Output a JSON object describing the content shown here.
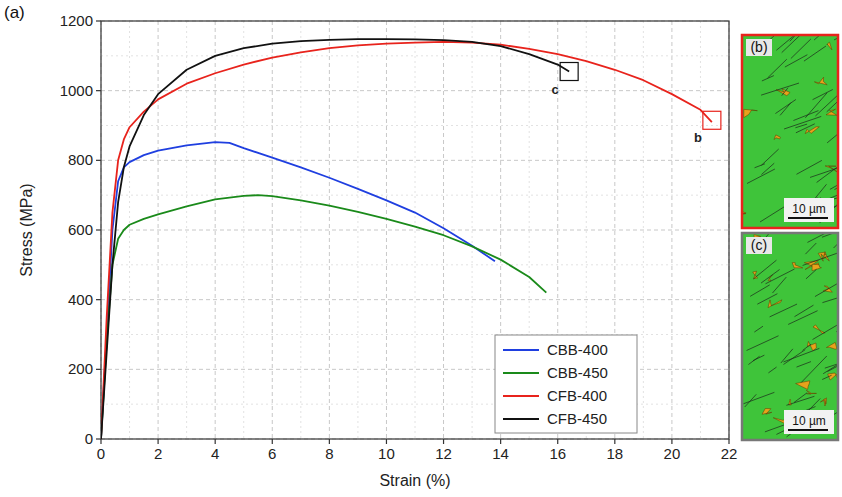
{
  "chart_data": {
    "type": "line",
    "panel_label": "(a)",
    "x_label": "Strain (%)",
    "y_label": "Stress (MPa)",
    "xlim": [
      0,
      22
    ],
    "ylim": [
      0,
      1200
    ],
    "xticks": [
      0,
      2,
      4,
      6,
      8,
      10,
      12,
      14,
      16,
      18,
      20,
      22
    ],
    "yticks": [
      0,
      200,
      400,
      600,
      800,
      1000,
      1200
    ],
    "grid": true,
    "legend": "lower right",
    "series": [
      {
        "name": "CBB-400",
        "color": "#1f3fe0",
        "x": [
          0,
          0.2,
          0.4,
          0.6,
          0.8,
          1,
          1.5,
          2,
          3,
          4,
          4.5,
          5,
          6,
          7,
          8,
          9,
          10,
          11,
          12,
          13,
          13.8
        ],
        "values": [
          0,
          300,
          600,
          740,
          780,
          795,
          815,
          828,
          843,
          852,
          850,
          835,
          808,
          780,
          750,
          718,
          685,
          650,
          605,
          555,
          510
        ]
      },
      {
        "name": "CBB-450",
        "color": "#1a8a1a",
        "x": [
          0,
          0.2,
          0.4,
          0.6,
          0.8,
          1,
          1.5,
          2,
          3,
          4,
          5,
          5.5,
          6,
          7,
          8,
          9,
          10,
          11,
          12,
          13,
          14,
          15,
          15.6
        ],
        "values": [
          0,
          280,
          500,
          575,
          600,
          615,
          632,
          645,
          668,
          688,
          698,
          700,
          697,
          685,
          670,
          652,
          632,
          610,
          585,
          553,
          515,
          465,
          420
        ]
      },
      {
        "name": "CFB-400",
        "color": "#e8231c",
        "x": [
          0,
          0.2,
          0.4,
          0.6,
          0.8,
          1,
          1.5,
          2,
          3,
          4,
          5,
          6,
          7,
          8,
          9,
          10,
          11,
          12,
          13,
          14,
          15,
          16,
          17,
          18,
          19,
          20,
          21,
          21.4
        ],
        "values": [
          0,
          350,
          650,
          800,
          860,
          895,
          940,
          975,
          1020,
          1050,
          1075,
          1095,
          1110,
          1122,
          1130,
          1135,
          1138,
          1140,
          1138,
          1132,
          1120,
          1105,
          1085,
          1060,
          1030,
          990,
          945,
          910
        ]
      },
      {
        "name": "CFB-450",
        "color": "#111111",
        "x": [
          0,
          0.2,
          0.4,
          0.6,
          0.8,
          1,
          1.5,
          2,
          3,
          4,
          5,
          6,
          7,
          8,
          9,
          10,
          11,
          12,
          13,
          14,
          15,
          16,
          16.4
        ],
        "values": [
          0,
          250,
          500,
          680,
          780,
          840,
          930,
          990,
          1060,
          1100,
          1122,
          1135,
          1142,
          1146,
          1148,
          1148,
          1147,
          1145,
          1140,
          1128,
          1105,
          1075,
          1055
        ]
      }
    ],
    "annotations": [
      {
        "text": "b",
        "x": 21.4,
        "y": 915,
        "color": "#e8231c"
      },
      {
        "text": "c",
        "x": 16.4,
        "y": 1055,
        "color": "#111111"
      }
    ]
  },
  "micrographs": [
    {
      "label": "(b)",
      "scale_bar": "10 µm"
    },
    {
      "label": "(c)",
      "scale_bar": "10 µm"
    }
  ]
}
